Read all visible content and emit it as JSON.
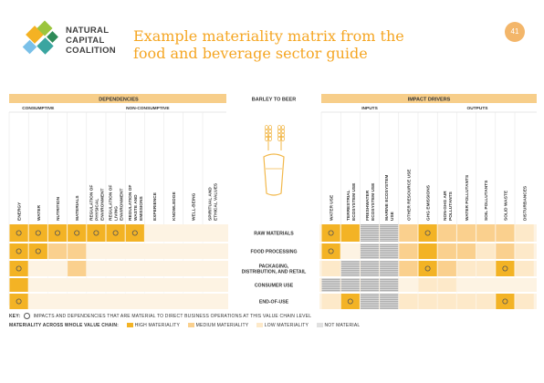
{
  "logo": {
    "lines": [
      "NATURAL",
      "CAPITAL",
      "COALITION"
    ]
  },
  "title": {
    "line1": "Example materiality matrix from the",
    "line2": "food and beverage sector guide"
  },
  "slide_number": "41",
  "colors": {
    "high": "#f3b325",
    "medium": "#fad08e",
    "low": "#fde9c9",
    "none": "#e0e0e0",
    "row_bg": "#fdf3e3",
    "hatch": "#bdbdbd",
    "accent": "#f5a623"
  },
  "matrix": {
    "dependencies_header": "DEPENDENCIES",
    "impact_header": "IMPACT DRIVERS",
    "center_header": "BARLEY TO BEER",
    "consumptive": "CONSUMPTIVE",
    "non_consumptive": "NON-CONSUMPTIVE",
    "inputs": "INPUTS",
    "outputs": "OUTPUTS",
    "dep_cols": [
      "ENERGY",
      "WATER",
      "NUTRITION",
      "MATERIALS",
      "REGULATION OF PHYSICAL ENVIRONMENT",
      "REGULATION OF LIVING ENVIRONMENT",
      "REGULATION OF WASTE AND EMISSIONS",
      "EXPERIENCE",
      "KNOWLEDGE",
      "WELL-BEING",
      "SPIRITUAL AND ETHICAL VALUES"
    ],
    "imp_cols": [
      "WATER USE",
      "TERRESTRIAL ECOSYSTEM USE",
      "FRESHWATER ECOSYSTEM USE",
      "MARINE ECOSYSTEM USE",
      "OTHER RESOURCE USE",
      "GHG EMISSIONS",
      "NON-GHG AIR POLLUTANTS",
      "WATER POLLUTANTS",
      "SOIL POLLUTANTS",
      "SOLID WASTE",
      "DISTURBANCES"
    ],
    "rows": [
      {
        "label": "RAW MATERIALS",
        "dep": [
          "H",
          "H",
          "H",
          "H",
          "H",
          "H",
          "H",
          "N",
          "N",
          "N",
          "N"
        ],
        "dep_c": [
          1,
          1,
          1,
          1,
          1,
          1,
          1,
          0,
          0,
          0,
          0
        ],
        "imp": [
          "H",
          "H",
          "X",
          "X",
          "M",
          "H",
          "M",
          "M",
          "M",
          "M",
          "L"
        ],
        "imp_c": [
          1,
          0,
          0,
          0,
          0,
          1,
          0,
          0,
          0,
          0,
          0
        ]
      },
      {
        "label": "FOOD PROCESSING",
        "dep": [
          "H",
          "H",
          "M",
          "M",
          "N",
          "N",
          "N",
          "N",
          "N",
          "N",
          "N"
        ],
        "dep_c": [
          1,
          1,
          0,
          0,
          0,
          0,
          0,
          0,
          0,
          0,
          0
        ],
        "imp": [
          "H",
          "N",
          "X",
          "X",
          "M",
          "H",
          "M",
          "M",
          "L",
          "M",
          "L"
        ],
        "imp_c": [
          1,
          0,
          0,
          0,
          0,
          0,
          0,
          0,
          0,
          0,
          0
        ]
      },
      {
        "label": "PACKAGING, DISTRIBUTION, AND RETAIL",
        "dep": [
          "H",
          "N",
          "N",
          "M",
          "N",
          "N",
          "N",
          "N",
          "N",
          "N",
          "N"
        ],
        "dep_c": [
          1,
          0,
          0,
          0,
          0,
          0,
          0,
          0,
          0,
          0,
          0
        ],
        "imp": [
          "L",
          "X",
          "X",
          "X",
          "M",
          "H",
          "M",
          "L",
          "L",
          "H",
          "L"
        ],
        "imp_c": [
          0,
          0,
          0,
          0,
          0,
          1,
          0,
          0,
          0,
          1,
          0
        ]
      },
      {
        "label": "CONSUMER USE",
        "dep": [
          "H",
          "N",
          "N",
          "N",
          "N",
          "N",
          "N",
          "N",
          "N",
          "N",
          "N"
        ],
        "dep_c": [
          0,
          0,
          0,
          0,
          0,
          0,
          0,
          0,
          0,
          0,
          0
        ],
        "imp": [
          "X",
          "X",
          "X",
          "X",
          "N",
          "L",
          "L",
          "N",
          "N",
          "N",
          "N"
        ],
        "imp_c": [
          0,
          0,
          0,
          0,
          0,
          0,
          0,
          0,
          0,
          0,
          0
        ]
      },
      {
        "label": "END-OF-USE",
        "dep": [
          "H",
          "N",
          "N",
          "N",
          "N",
          "N",
          "N",
          "N",
          "N",
          "N",
          "N"
        ],
        "dep_c": [
          1,
          0,
          0,
          0,
          0,
          0,
          0,
          0,
          0,
          0,
          0
        ],
        "imp": [
          "L",
          "H",
          "X",
          "X",
          "L",
          "L",
          "L",
          "L",
          "L",
          "H",
          "L"
        ],
        "imp_c": [
          0,
          1,
          0,
          0,
          0,
          0,
          0,
          0,
          0,
          1,
          0
        ]
      }
    ],
    "key_line1_label": "KEY:",
    "key_line1_text": "IMPACTS AND DEPENDENCIES THAT ARE MATERIAL TO DIRECT BUSINESS OPERATIONS AT THIS VALUE CHAIN LEVEL",
    "key_line2_label": "MATERIALITY ACROSS WHOLE VALUE CHAIN:",
    "legend": {
      "high": "HIGH MATERIALITY",
      "medium": "MEDIUM MATERIALITY",
      "low": "LOW MATERIALITY",
      "none": "NOT MATERIAL"
    }
  }
}
